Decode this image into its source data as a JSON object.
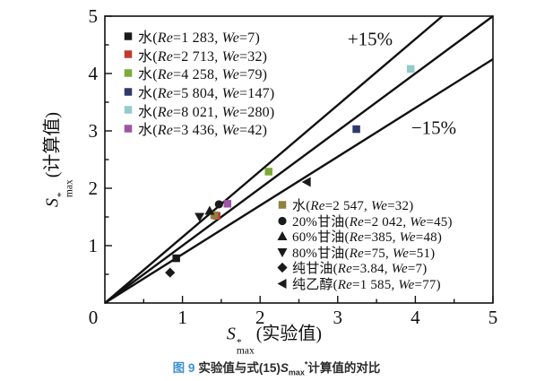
{
  "figure": {
    "caption": {
      "fig_label": "图 9",
      "text_before": "实验值与式(15)",
      "sym": "S",
      "sym_sub": "max",
      "sym_sup": "*",
      "text_after": "计算值的对比"
    },
    "accent_blue": "#3e93cd"
  },
  "chart_data": {
    "type": "scatter",
    "title": "",
    "xlabel": {
      "sym": "S",
      "sup": "*",
      "sub": "max",
      "rest": "(实验值)"
    },
    "ylabel": {
      "sym": "S",
      "sup": "*",
      "sub": "max",
      "rest": "(计算值)"
    },
    "xlim": [
      0,
      5
    ],
    "ylim": [
      0,
      5
    ],
    "x_tick_labels": [
      "0",
      "1",
      "2",
      "3",
      "4",
      "5"
    ],
    "y_tick_labels": [
      "0",
      "1",
      "2",
      "3",
      "4",
      "5"
    ],
    "minor_tick_step": 0.5,
    "grid": false,
    "frame": "box",
    "line_color": "#111111",
    "reference_lines": [
      {
        "label": "+15%",
        "slope": 1.15
      },
      {
        "label": "y = x",
        "slope": 1.0
      },
      {
        "label": "−15%",
        "slope": 0.85
      }
    ],
    "annotations": [
      {
        "text": "+15%",
        "x": 3.42,
        "y": 4.6
      },
      {
        "text": "−15%",
        "x": 4.24,
        "y": 3.05
      }
    ],
    "series": [
      {
        "label": "水(Re=1 283, We=7)",
        "marker": "square",
        "color": "#1a1a1a",
        "legend": "top-left",
        "points": [
          [
            0.92,
            0.78
          ]
        ]
      },
      {
        "label": "水(Re=2 713, We=32)",
        "marker": "square",
        "color": "#bf3b2f",
        "legend": "top-left",
        "points": [
          [
            1.44,
            1.52
          ]
        ]
      },
      {
        "label": "水(Re=4 258, We=79)",
        "marker": "square",
        "color": "#7cab38",
        "legend": "top-left",
        "points": [
          [
            2.11,
            2.29
          ]
        ]
      },
      {
        "label": "水(Re=5 804, We=147)",
        "marker": "square",
        "color": "#2f3a68",
        "legend": "top-left",
        "points": [
          [
            3.24,
            3.03
          ]
        ]
      },
      {
        "label": "水(Re=8 021, We=280)",
        "marker": "square",
        "color": "#93cbcb",
        "legend": "top-left",
        "points": [
          [
            3.94,
            4.08
          ]
        ]
      },
      {
        "label": "水(Re=3 436, We=42)",
        "marker": "square",
        "color": "#9e55a3",
        "legend": "top-left",
        "points": [
          [
            1.58,
            1.73
          ]
        ]
      },
      {
        "label": "水(Re=2 547, We=32)",
        "marker": "square",
        "color": "#8f813f",
        "legend": "bottom-right",
        "points": [
          [
            1.41,
            1.53
          ]
        ]
      },
      {
        "label": "20%甘油(Re=2 042, We=45)",
        "marker": "circle",
        "color": "#1a1a1a",
        "legend": "bottom-right",
        "points": [
          [
            1.47,
            1.72
          ]
        ]
      },
      {
        "label": "60%甘油(Re=385, We=48)",
        "marker": "triangle-up",
        "color": "#1a1a1a",
        "legend": "bottom-right",
        "points": [
          [
            1.35,
            1.61
          ]
        ]
      },
      {
        "label": "80%甘油(Re=75, We=51)",
        "marker": "triangle-down",
        "color": "#1a1a1a",
        "legend": "bottom-right",
        "points": [
          [
            1.22,
            1.5
          ]
        ]
      },
      {
        "label": "纯甘油(Re=3.84, We=7)",
        "marker": "diamond",
        "color": "#1a1a1a",
        "legend": "bottom-right",
        "points": [
          [
            0.84,
            0.53
          ]
        ]
      },
      {
        "label": "纯乙醇(Re=1 585, We=77)",
        "marker": "triangle-left",
        "color": "#1a1a1a",
        "legend": "bottom-right",
        "points": [
          [
            2.6,
            2.11
          ]
        ]
      }
    ]
  }
}
